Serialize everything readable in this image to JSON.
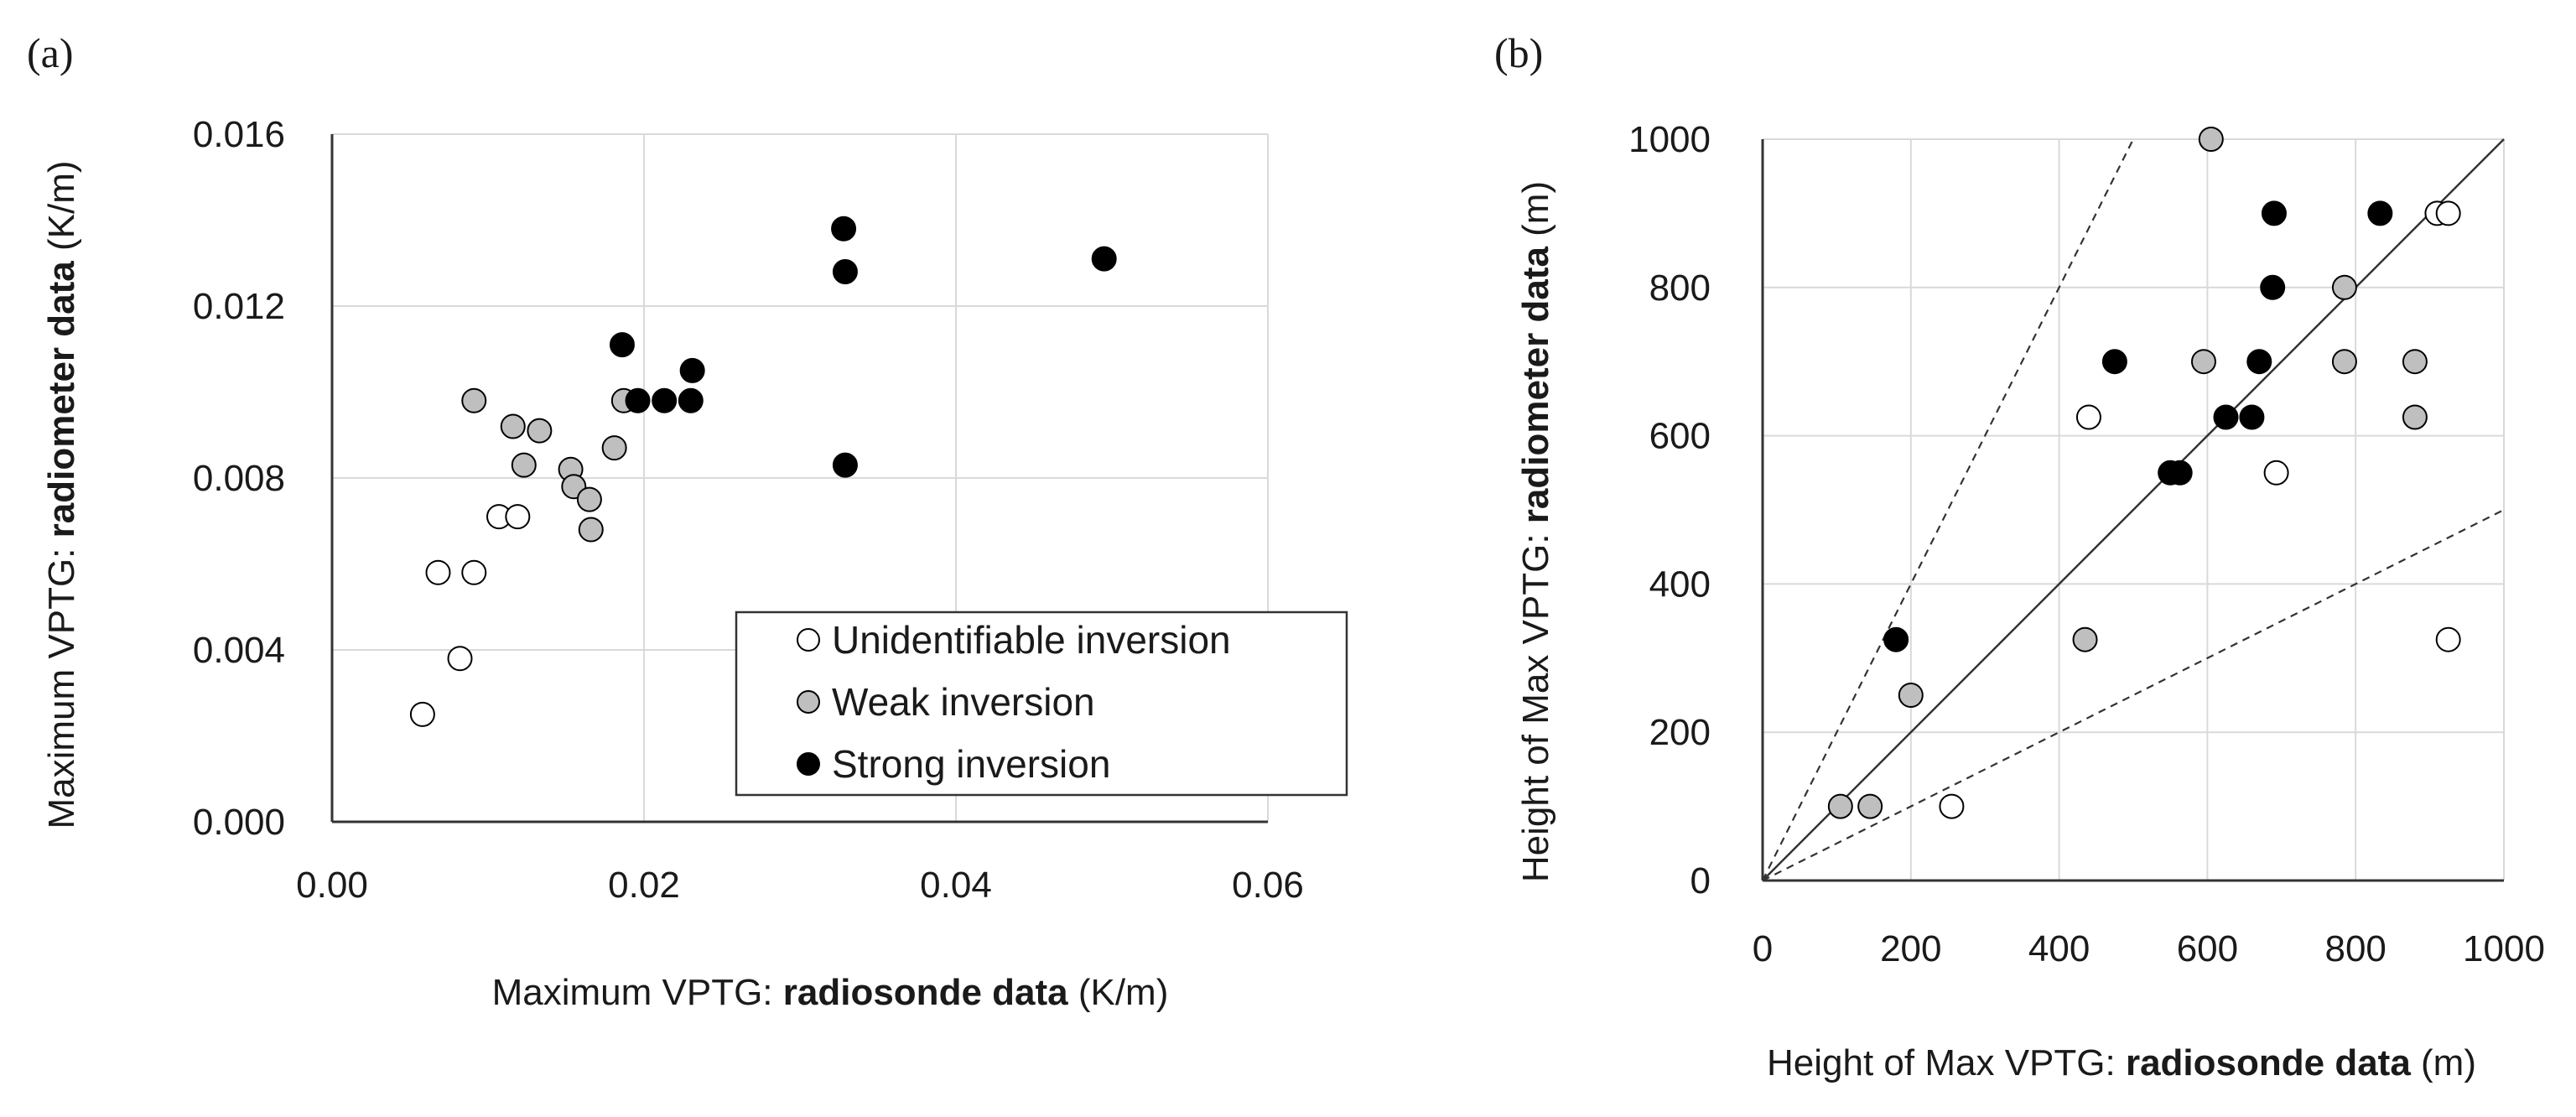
{
  "colors": {
    "unidentifiable": "#ffffff",
    "weak": "#bfbfbf",
    "strong": "#000000",
    "marker_edge": "#000000",
    "grid": "#d9d9d9"
  },
  "chart_data": [
    {
      "type": "scatter",
      "panel_label": "(a)",
      "xlabel_plain": "Maximum VPTG: ",
      "xlabel_bold": "radiosonde data",
      "xlabel_unit": " (K/m)",
      "ylabel_plain": "Maximum VPTG: ",
      "ylabel_bold": "radiometer data",
      "ylabel_unit": " (K/m)",
      "xlim": [
        0,
        0.06
      ],
      "ylim": [
        0,
        0.016
      ],
      "xticks": [
        "0.00",
        "0.02",
        "0.04",
        "0.06"
      ],
      "yticks": [
        "0.000",
        "0.004",
        "0.008",
        "0.012",
        "0.016"
      ],
      "grid": true,
      "legend_position": "bottom-right",
      "series": [
        {
          "name": "Unidentifiable inversion",
          "key": "unidentifiable",
          "x": [
            0.0058,
            0.0068,
            0.0082,
            0.0091,
            0.0107,
            0.0119
          ],
          "y": [
            0.0025,
            0.0058,
            0.0038,
            0.0058,
            0.0071,
            0.0071
          ]
        },
        {
          "name": "Weak inversion",
          "key": "weak",
          "x": [
            0.0091,
            0.0116,
            0.0123,
            0.0133,
            0.0153,
            0.0155,
            0.0165,
            0.0166,
            0.0181,
            0.0187
          ],
          "y": [
            0.0098,
            0.0092,
            0.0083,
            0.0091,
            0.0082,
            0.0078,
            0.0075,
            0.0068,
            0.0087,
            0.0098
          ]
        },
        {
          "name": "Strong inversion",
          "key": "strong",
          "x": [
            0.0186,
            0.0196,
            0.0213,
            0.023,
            0.0231,
            0.0328,
            0.0329,
            0.0329,
            0.0495
          ],
          "y": [
            0.0111,
            0.0098,
            0.0098,
            0.0098,
            0.0105,
            0.0138,
            0.0128,
            0.0083,
            0.0131
          ]
        }
      ]
    },
    {
      "type": "scatter",
      "panel_label": "(b)",
      "xlabel_plain": "Height of Max VPTG: ",
      "xlabel_bold": "radiosonde data",
      "xlabel_unit": " (m)",
      "ylabel_plain": "Height of Max VPTG: ",
      "ylabel_bold": "radiometer data",
      "ylabel_unit": " (m)",
      "xlim": [
        0,
        1000
      ],
      "ylim": [
        0,
        1000
      ],
      "xticks": [
        "0",
        "200",
        "400",
        "600",
        "800",
        "1000"
      ],
      "yticks": [
        "0",
        "200",
        "400",
        "600",
        "800",
        "1000"
      ],
      "grid": true,
      "reference_lines": [
        {
          "kind": "1:1",
          "slope": 1,
          "style": "solid"
        },
        {
          "kind": "2:1",
          "slope": 2,
          "style": "dashed"
        },
        {
          "kind": "1:2",
          "slope": 0.5,
          "style": "dashed"
        }
      ],
      "series": [
        {
          "name": "Unidentifiable inversion",
          "key": "unidentifiable",
          "x": [
            440,
            255,
            693,
            910,
            925,
            925
          ],
          "y": [
            625,
            100,
            550,
            900,
            900,
            325
          ]
        },
        {
          "name": "Weak inversion",
          "key": "weak",
          "x": [
            105,
            145,
            200,
            435,
            595,
            605,
            785,
            785,
            880,
            880
          ],
          "y": [
            100,
            100,
            250,
            325,
            700,
            1000,
            800,
            700,
            700,
            625
          ]
        },
        {
          "name": "Strong inversion",
          "key": "strong",
          "x": [
            180,
            475,
            550,
            563,
            625,
            660,
            670,
            688,
            690,
            833
          ],
          "y": [
            325,
            700,
            550,
            550,
            625,
            625,
            700,
            800,
            900,
            900
          ]
        }
      ]
    }
  ]
}
